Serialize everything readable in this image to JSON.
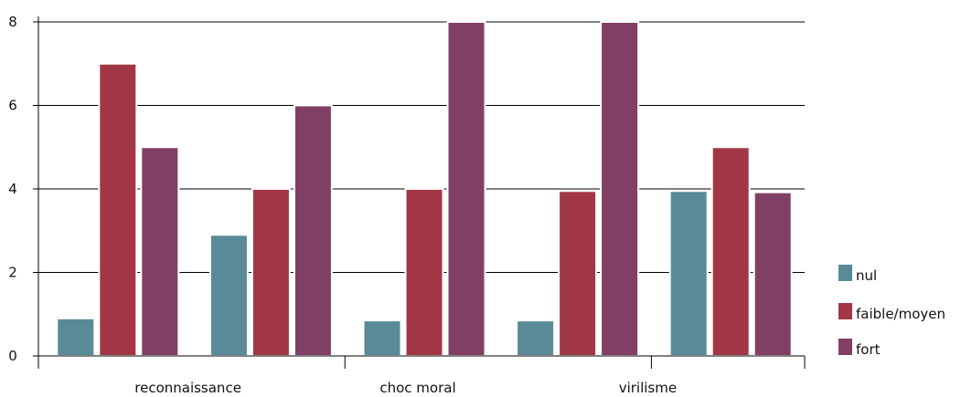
{
  "chart_data": {
    "type": "bar",
    "title": "",
    "xlabel": "",
    "ylabel": "",
    "ylim": [
      0,
      8
    ],
    "yticks": [
      0,
      2,
      4,
      6,
      8
    ],
    "grid": true,
    "legend_position": "right",
    "categories": [
      "reconnaissance",
      "",
      "choc moral",
      "",
      "virilisme"
    ],
    "series": [
      {
        "name": "nul",
        "color": "#588a97",
        "values": [
          0.9,
          2.9,
          0.85,
          0.85,
          3.95
        ]
      },
      {
        "name": "faible/moyen",
        "color": "#a13745",
        "values": [
          7.0,
          4.0,
          4.0,
          3.95,
          5.0
        ]
      },
      {
        "name": "fort",
        "color": "#813f65",
        "values": [
          5.0,
          6.0,
          8.0,
          8.0,
          3.92
        ]
      }
    ]
  }
}
